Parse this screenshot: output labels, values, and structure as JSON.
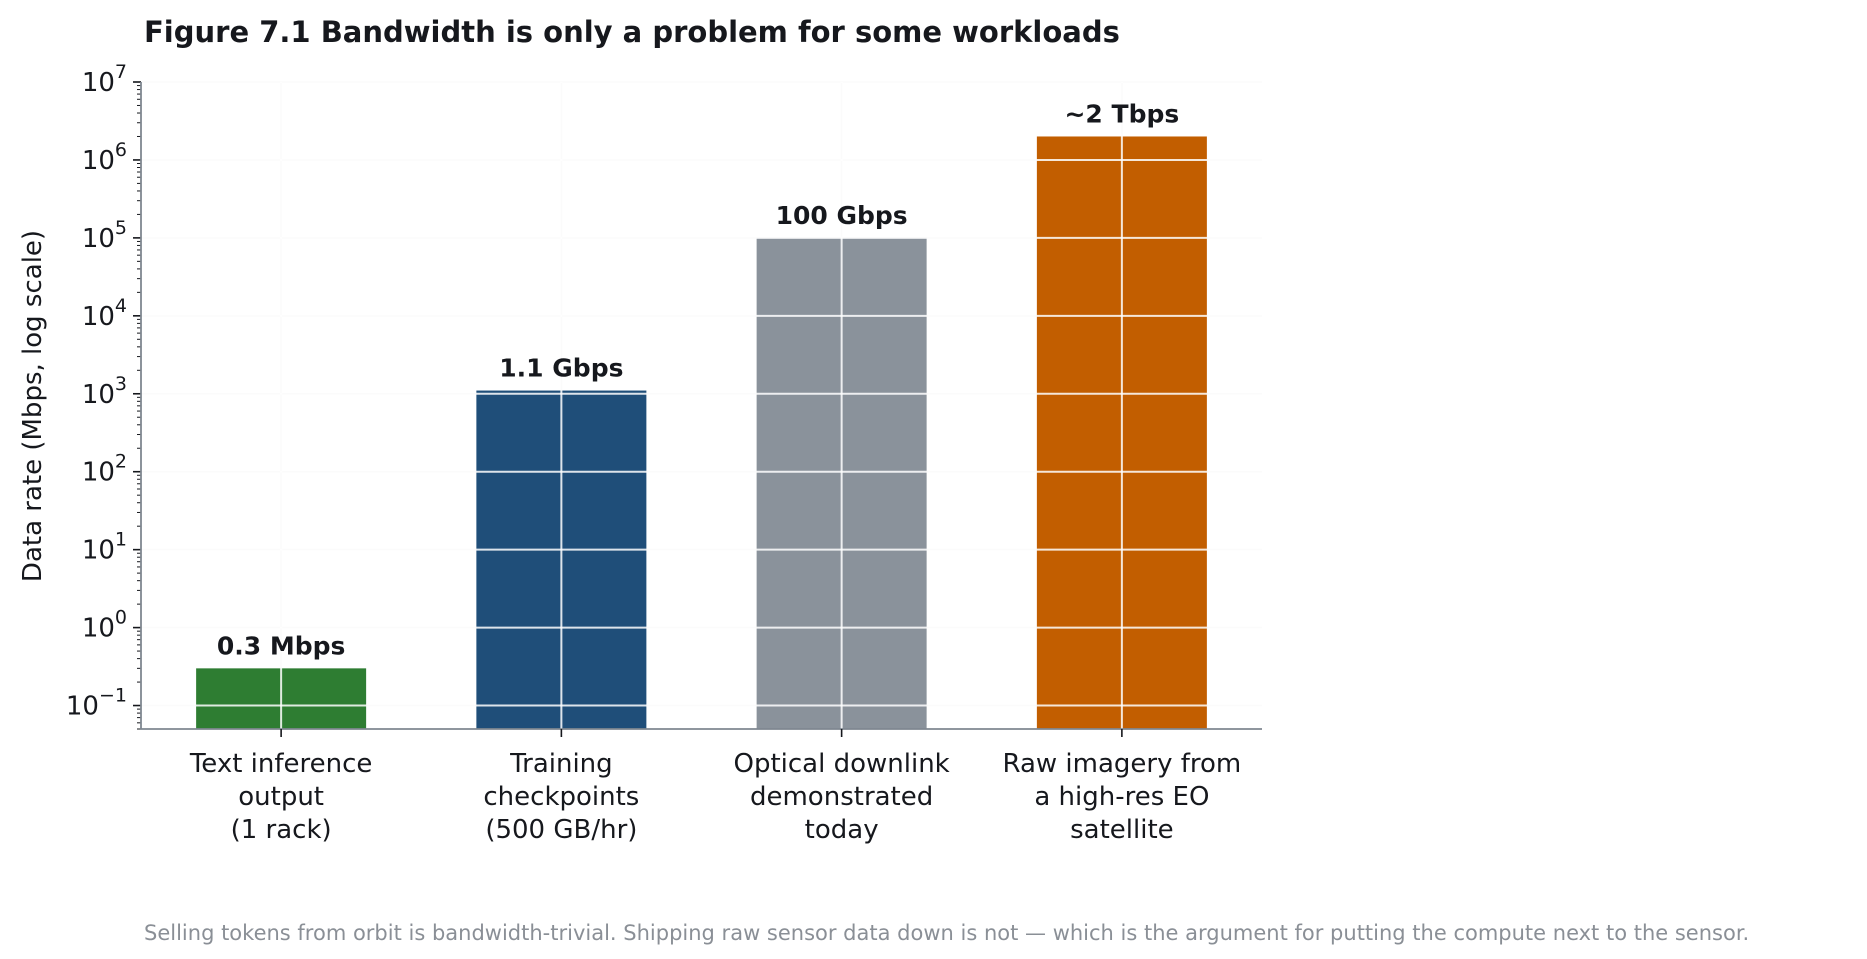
{
  "chart_data": {
    "type": "bar",
    "title": "Figure 7.1  Bandwidth is only a problem for some workloads",
    "ylabel": "Data rate (Mbps, log scale)",
    "xlabel": "",
    "yscale": "log",
    "ylim": [
      0.05,
      10000000
    ],
    "grid": true,
    "yticks": [
      {
        "base": "10",
        "exp": "−1"
      },
      {
        "base": "10",
        "exp": "0"
      },
      {
        "base": "10",
        "exp": "1"
      },
      {
        "base": "10",
        "exp": "2"
      },
      {
        "base": "10",
        "exp": "3"
      },
      {
        "base": "10",
        "exp": "4"
      },
      {
        "base": "10",
        "exp": "5"
      },
      {
        "base": "10",
        "exp": "6"
      },
      {
        "base": "10",
        "exp": "7"
      }
    ],
    "ytick_values": [
      0.1,
      1,
      10,
      100,
      1000,
      10000,
      100000,
      1000000,
      10000000
    ],
    "categories": [
      [
        "Text inference",
        "output",
        "(1 rack)"
      ],
      [
        "Training",
        "checkpoints",
        "(500 GB/hr)"
      ],
      [
        "Optical downlink",
        "demonstrated",
        "today"
      ],
      [
        "Raw imagery from",
        "a high-res EO",
        "satellite"
      ]
    ],
    "values": [
      0.3,
      1100,
      100000,
      2000000
    ],
    "data_labels": [
      "0.3 Mbps",
      "1.1 Gbps",
      "100 Gbps",
      "~2 Tbps"
    ],
    "colors": [
      "#2e7d32",
      "#1f4e79",
      "#8a929b",
      "#c25e00"
    ]
  },
  "caption": "Selling tokens from orbit is bandwidth-trivial. Shipping raw sensor data down is not — which is the argument for putting the compute next to the sensor."
}
